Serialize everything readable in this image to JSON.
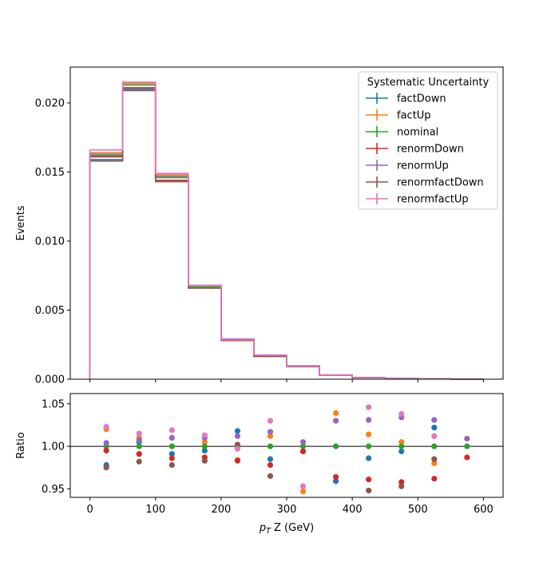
{
  "chart_data": [
    {
      "type": "step",
      "panel": "main",
      "ylabel": "Events",
      "xlim": [
        -30,
        630
      ],
      "ylim": [
        0,
        0.0226
      ],
      "yticks": [
        "0.000",
        "0.005",
        "0.010",
        "0.015",
        "0.020"
      ],
      "ytick_values": [
        0,
        0.005,
        0.01,
        0.015,
        0.02
      ],
      "bin_edges": [
        0,
        50,
        100,
        150,
        200,
        250,
        300,
        350,
        400,
        450,
        500,
        550,
        600
      ],
      "legend": {
        "title": "Systematic Uncertainty",
        "placement": "top-right"
      },
      "series": [
        {
          "name": "factDown",
          "color": "#1f77b4",
          "values": [
            0.0159,
            0.021,
            0.0144,
            0.0066,
            0.00285,
            0.00168,
            0.00093,
            0.0003,
            0.00012,
            5e-05,
            2e-05,
            1e-05
          ]
        },
        {
          "name": "factUp",
          "color": "#ff7f0e",
          "values": [
            0.0164,
            0.0214,
            0.0148,
            0.0068,
            0.0029,
            0.00172,
            0.00096,
            0.00031,
            0.00012,
            5e-05,
            2e-05,
            1e-05
          ]
        },
        {
          "name": "nominal",
          "color": "#2ca02c",
          "values": [
            0.0162,
            0.0213,
            0.0146,
            0.0067,
            0.00285,
            0.0017,
            0.00094,
            0.0003,
            0.00012,
            5e-05,
            2e-05,
            1e-05
          ]
        },
        {
          "name": "renormDown",
          "color": "#d62728",
          "values": [
            0.0161,
            0.0211,
            0.0144,
            0.0066,
            0.0028,
            0.00167,
            0.00093,
            0.00029,
            0.00012,
            5e-05,
            2e-05,
            1e-05
          ]
        },
        {
          "name": "renormUp",
          "color": "#9467bd",
          "values": [
            0.0163,
            0.0215,
            0.0147,
            0.0068,
            0.0029,
            0.00172,
            0.00095,
            0.00031,
            0.00012,
            5e-05,
            2e-05,
            1e-05
          ]
        },
        {
          "name": "renormfactDown",
          "color": "#8c564b",
          "values": [
            0.0158,
            0.0209,
            0.0143,
            0.0066,
            0.00285,
            0.00164,
            0.00093,
            0.00029,
            0.00011,
            5e-05,
            2e-05,
            1e-05
          ]
        },
        {
          "name": "renormfactUp",
          "color": "#e377c2",
          "values": [
            0.0166,
            0.0215,
            0.0149,
            0.0068,
            0.00285,
            0.00175,
            0.00089,
            0.0003,
            0.00013,
            5e-05,
            2e-05,
            1e-05
          ]
        }
      ]
    },
    {
      "type": "scatter",
      "panel": "ratio",
      "xlabel": "$p_T$ Z (GeV)",
      "xlabel_base": "p",
      "xlabel_sub": "T",
      "xlabel_rest": " Z (GeV)",
      "ylabel": "Ratio",
      "xlim": [
        -30,
        630
      ],
      "ylim": [
        0.94,
        1.062
      ],
      "yticks": [
        "0.95",
        "1.00",
        "1.05"
      ],
      "ytick_values": [
        0.95,
        1.0,
        1.05
      ],
      "xticks": [
        "0",
        "100",
        "200",
        "300",
        "400",
        "500",
        "600"
      ],
      "xtick_values": [
        0,
        100,
        200,
        300,
        400,
        500,
        600
      ],
      "reference_line": 1.0,
      "x": [
        25,
        75,
        125,
        175,
        225,
        275,
        325,
        375,
        425,
        475,
        525,
        575
      ],
      "series": [
        {
          "name": "factDown",
          "color": "#1f77b4",
          "values": [
            0.978,
            1.005,
            0.991,
            0.995,
            1.018,
            0.985,
            0.994,
            0.959,
            0.986,
            0.994,
            1.022,
            null
          ]
        },
        {
          "name": "factUp",
          "color": "#ff7f0e",
          "values": [
            1.02,
            1.01,
            1.01,
            1.005,
            0.984,
            1.012,
            0.947,
            1.039,
            1.014,
            1.005,
            0.98,
            null
          ]
        },
        {
          "name": "nominal",
          "color": "#2ca02c",
          "values": [
            1.0,
            1.0,
            1.0,
            1.0,
            1.0,
            1.0,
            1.0,
            1.0,
            1.0,
            1.0,
            1.0,
            1.0
          ]
        },
        {
          "name": "renormDown",
          "color": "#d62728",
          "values": [
            0.995,
            0.991,
            0.986,
            0.987,
            0.983,
            0.978,
            0.994,
            0.964,
            0.961,
            0.958,
            0.962,
            0.987
          ]
        },
        {
          "name": "renormUp",
          "color": "#9467bd",
          "values": [
            1.004,
            1.007,
            1.01,
            1.01,
            1.012,
            1.017,
            1.005,
            1.03,
            1.031,
            1.034,
            1.031,
            1.009
          ]
        },
        {
          "name": "renormfactDown",
          "color": "#8c564b",
          "values": [
            0.975,
            0.982,
            0.978,
            0.983,
            1.002,
            0.965,
            null,
            null,
            0.948,
            0.953,
            0.985,
            null
          ]
        },
        {
          "name": "renormfactUp",
          "color": "#e377c2",
          "values": [
            1.023,
            1.015,
            1.019,
            1.013,
            0.997,
            1.03,
            0.953,
            null,
            1.046,
            1.038,
            1.012,
            null
          ]
        }
      ]
    }
  ]
}
